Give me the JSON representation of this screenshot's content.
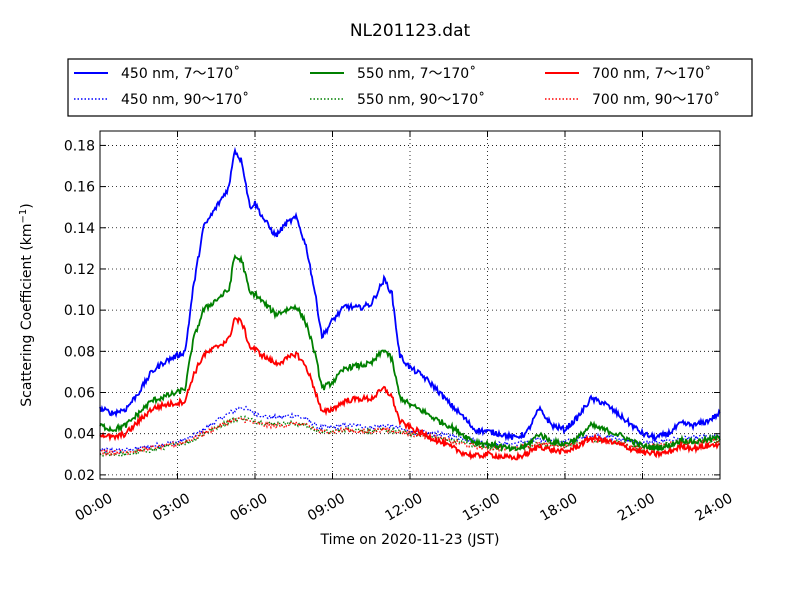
{
  "chart_data": {
    "type": "line",
    "title": "NL201123.dat",
    "xlabel": "Time on 2020-11-23 (JST)",
    "ylabel_main": "Scattering Coefficient (km",
    "ylabel_sup": "−1",
    "ylabel_close": ")",
    "xlim_hours": [
      0,
      24
    ],
    "ylim": [
      0.018,
      0.187
    ],
    "x_ticks": [
      {
        "hours": 0,
        "label": "00:00"
      },
      {
        "hours": 3,
        "label": "03:00"
      },
      {
        "hours": 6,
        "label": "06:00"
      },
      {
        "hours": 9,
        "label": "09:00"
      },
      {
        "hours": 12,
        "label": "12:00"
      },
      {
        "hours": 15,
        "label": "15:00"
      },
      {
        "hours": 18,
        "label": "18:00"
      },
      {
        "hours": 21,
        "label": "21:00"
      },
      {
        "hours": 24,
        "label": "24:00"
      }
    ],
    "y_ticks": [
      {
        "value": 0.02,
        "label": "0.02"
      },
      {
        "value": 0.04,
        "label": "0.04"
      },
      {
        "value": 0.06,
        "label": "0.06"
      },
      {
        "value": 0.08,
        "label": "0.08"
      },
      {
        "value": 0.1,
        "label": "0.10"
      },
      {
        "value": 0.12,
        "label": "0.12"
      },
      {
        "value": 0.14,
        "label": "0.14"
      },
      {
        "value": 0.16,
        "label": "0.16"
      },
      {
        "value": 0.18,
        "label": "0.18"
      }
    ],
    "grid": true,
    "legend_position": "top",
    "series": [
      {
        "name": "450 nm, 7～170˚",
        "color": "#0000ff",
        "style": "solid",
        "x": [
          0,
          0.5,
          1,
          1.5,
          2,
          2.5,
          3,
          3.3,
          3.6,
          4,
          4.5,
          5,
          5.2,
          5.5,
          5.8,
          6,
          6.3,
          6.8,
          7.2,
          7.6,
          8,
          8.3,
          8.6,
          9,
          9.5,
          10,
          10.5,
          11,
          11.3,
          11.6,
          12,
          12.5,
          13,
          13.5,
          14,
          14.5,
          15,
          15.5,
          16,
          16.5,
          17,
          17.5,
          18,
          18.5,
          19,
          19.5,
          20,
          20.5,
          21,
          21.5,
          22,
          22.5,
          23,
          23.5,
          24
        ],
        "y": [
          0.052,
          0.05,
          0.052,
          0.06,
          0.07,
          0.075,
          0.078,
          0.08,
          0.11,
          0.14,
          0.15,
          0.16,
          0.178,
          0.172,
          0.15,
          0.152,
          0.145,
          0.136,
          0.142,
          0.145,
          0.13,
          0.11,
          0.087,
          0.095,
          0.102,
          0.101,
          0.103,
          0.115,
          0.108,
          0.078,
          0.072,
          0.068,
          0.062,
          0.055,
          0.049,
          0.042,
          0.041,
          0.04,
          0.038,
          0.04,
          0.052,
          0.044,
          0.042,
          0.048,
          0.057,
          0.055,
          0.05,
          0.045,
          0.04,
          0.038,
          0.04,
          0.045,
          0.044,
          0.046,
          0.05
        ]
      },
      {
        "name": "450 nm, 90～170˚",
        "color": "#0000ff",
        "style": "dotted",
        "x": [
          0,
          1,
          2,
          3,
          3.5,
          4,
          4.5,
          5,
          5.5,
          6,
          6.5,
          7,
          7.5,
          8,
          8.5,
          9,
          9.5,
          10,
          10.5,
          11,
          11.5,
          12,
          13,
          14,
          15,
          16,
          17,
          18,
          19,
          20,
          21,
          22,
          23,
          24
        ],
        "y": [
          0.032,
          0.032,
          0.034,
          0.036,
          0.038,
          0.042,
          0.046,
          0.05,
          0.053,
          0.05,
          0.048,
          0.048,
          0.049,
          0.047,
          0.043,
          0.043,
          0.044,
          0.044,
          0.043,
          0.044,
          0.043,
          0.041,
          0.04,
          0.038,
          0.035,
          0.035,
          0.037,
          0.036,
          0.039,
          0.038,
          0.035,
          0.037,
          0.038,
          0.039
        ]
      },
      {
        "name": "550 nm, 7～170˚",
        "color": "#008000",
        "style": "solid",
        "x": [
          0,
          0.5,
          1,
          1.5,
          2,
          2.5,
          3,
          3.3,
          3.6,
          4,
          4.5,
          5,
          5.2,
          5.5,
          5.8,
          6,
          6.3,
          6.8,
          7.2,
          7.6,
          8,
          8.3,
          8.6,
          9,
          9.5,
          10,
          10.5,
          11,
          11.3,
          11.6,
          12,
          12.5,
          13,
          13.5,
          14,
          14.5,
          15,
          15.5,
          16,
          16.5,
          17,
          17.5,
          18,
          18.5,
          19,
          19.5,
          20,
          20.5,
          21,
          21.5,
          22,
          22.5,
          23,
          23.5,
          24
        ],
        "y": [
          0.044,
          0.042,
          0.044,
          0.05,
          0.056,
          0.058,
          0.06,
          0.062,
          0.085,
          0.1,
          0.105,
          0.11,
          0.126,
          0.124,
          0.108,
          0.108,
          0.104,
          0.098,
          0.1,
          0.102,
          0.093,
          0.08,
          0.062,
          0.065,
          0.072,
          0.073,
          0.074,
          0.081,
          0.076,
          0.058,
          0.054,
          0.051,
          0.047,
          0.044,
          0.04,
          0.036,
          0.035,
          0.034,
          0.032,
          0.034,
          0.04,
          0.036,
          0.035,
          0.038,
          0.044,
          0.042,
          0.04,
          0.037,
          0.034,
          0.033,
          0.034,
          0.037,
          0.036,
          0.037,
          0.038
        ]
      },
      {
        "name": "550 nm, 90～170˚",
        "color": "#008000",
        "style": "dotted",
        "x": [
          0,
          1,
          2,
          3,
          3.5,
          4,
          4.5,
          5,
          5.5,
          6,
          6.5,
          7,
          7.5,
          8,
          8.5,
          9,
          9.5,
          10,
          10.5,
          11,
          11.5,
          12,
          13,
          14,
          15,
          16,
          17,
          18,
          19,
          20,
          21,
          22,
          23,
          24
        ],
        "y": [
          0.03,
          0.03,
          0.032,
          0.035,
          0.036,
          0.04,
          0.043,
          0.046,
          0.048,
          0.046,
          0.045,
          0.045,
          0.045,
          0.044,
          0.041,
          0.041,
          0.042,
          0.042,
          0.041,
          0.042,
          0.041,
          0.04,
          0.038,
          0.036,
          0.033,
          0.033,
          0.035,
          0.034,
          0.037,
          0.036,
          0.033,
          0.035,
          0.036,
          0.037
        ]
      },
      {
        "name": "700 nm, 7～170˚",
        "color": "#ff0000",
        "style": "solid",
        "x": [
          0,
          0.5,
          1,
          1.5,
          2,
          2.5,
          3,
          3.3,
          3.6,
          4,
          4.5,
          5,
          5.2,
          5.5,
          5.8,
          6,
          6.3,
          6.8,
          7.2,
          7.6,
          8,
          8.3,
          8.6,
          9,
          9.5,
          10,
          10.5,
          11,
          11.3,
          11.6,
          12,
          12.5,
          13,
          13.5,
          14,
          14.5,
          15,
          15.5,
          16,
          16.5,
          17,
          17.5,
          18,
          18.5,
          19,
          19.5,
          20,
          20.5,
          21,
          21.5,
          22,
          22.5,
          23,
          23.5,
          24
        ],
        "y": [
          0.04,
          0.038,
          0.04,
          0.046,
          0.052,
          0.054,
          0.055,
          0.056,
          0.068,
          0.078,
          0.082,
          0.086,
          0.096,
          0.094,
          0.082,
          0.081,
          0.078,
          0.074,
          0.076,
          0.079,
          0.072,
          0.062,
          0.05,
          0.052,
          0.056,
          0.057,
          0.057,
          0.062,
          0.058,
          0.046,
          0.043,
          0.04,
          0.037,
          0.034,
          0.031,
          0.029,
          0.03,
          0.029,
          0.028,
          0.03,
          0.034,
          0.032,
          0.031,
          0.034,
          0.038,
          0.037,
          0.035,
          0.033,
          0.031,
          0.03,
          0.031,
          0.034,
          0.033,
          0.034,
          0.035
        ]
      },
      {
        "name": "700 nm, 90～170˚",
        "color": "#ff0000",
        "style": "dotted",
        "x": [
          0,
          1,
          2,
          3,
          3.5,
          4,
          4.5,
          5,
          5.5,
          6,
          6.5,
          7,
          7.5,
          8,
          8.5,
          9,
          9.5,
          10,
          10.5,
          11,
          11.5,
          12,
          13,
          14,
          15,
          16,
          17,
          18,
          19,
          20,
          21,
          22,
          23,
          24
        ],
        "y": [
          0.031,
          0.031,
          0.033,
          0.035,
          0.037,
          0.04,
          0.043,
          0.046,
          0.047,
          0.045,
          0.044,
          0.044,
          0.045,
          0.044,
          0.041,
          0.041,
          0.042,
          0.041,
          0.041,
          0.042,
          0.041,
          0.04,
          0.038,
          0.035,
          0.033,
          0.033,
          0.035,
          0.034,
          0.037,
          0.036,
          0.033,
          0.035,
          0.036,
          0.037
        ]
      }
    ]
  }
}
